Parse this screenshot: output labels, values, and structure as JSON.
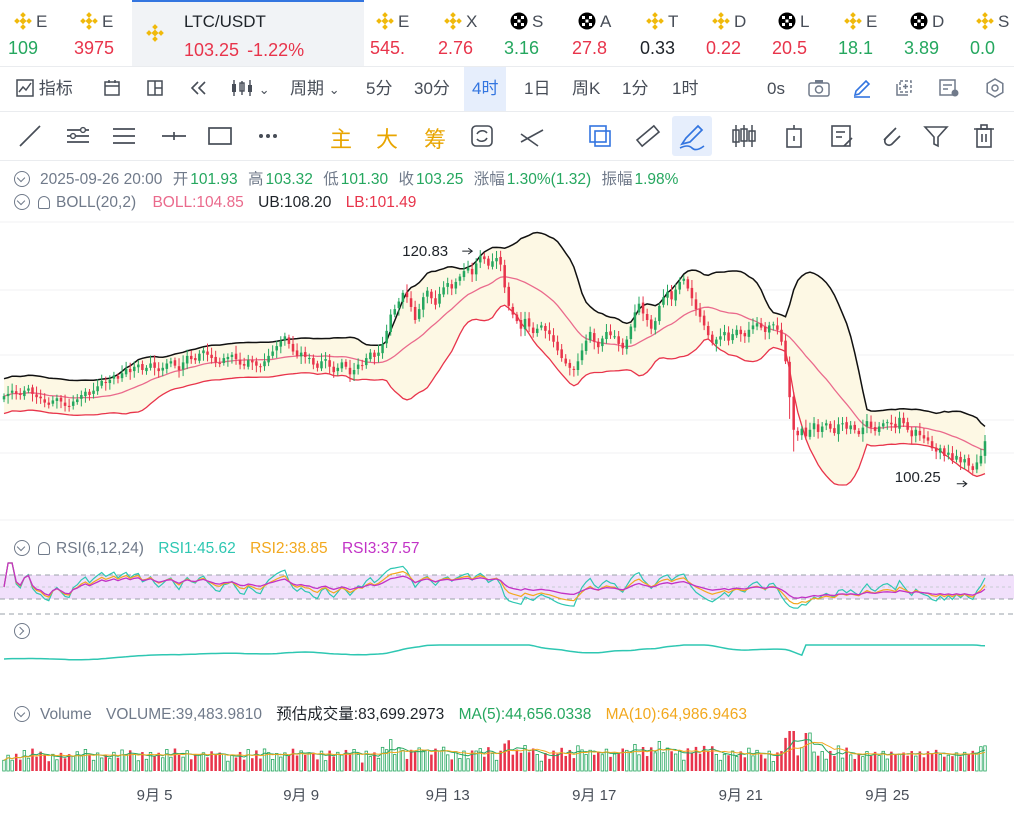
{
  "ticker": [
    {
      "name": "E",
      "price": "109",
      "dir": "pos",
      "icon": "binance-icon"
    },
    {
      "name": "E",
      "price": "3975",
      "dir": "neg",
      "icon": "binance-icon"
    },
    {
      "name": "LTC/USDT",
      "price": "103.25",
      "change": "-1.22%",
      "dir": "neg",
      "icon": "binance-icon",
      "active": true
    },
    {
      "name": "E",
      "price": "545.",
      "dir": "neg",
      "icon": "binance-icon"
    },
    {
      "name": "X",
      "price": "2.76",
      "dir": "neg",
      "icon": "binance-icon"
    },
    {
      "name": "S",
      "price": "3.16",
      "dir": "pos",
      "icon": "okx-icon"
    },
    {
      "name": "A",
      "price": "27.8",
      "dir": "neg",
      "icon": "okx-icon"
    },
    {
      "name": "T",
      "price": "0.33",
      "dir": "neu",
      "icon": "binance-icon"
    },
    {
      "name": "D",
      "price": "0.22",
      "dir": "neg",
      "icon": "binance-icon"
    },
    {
      "name": "L",
      "price": "20.5",
      "dir": "neg",
      "icon": "okx-icon"
    },
    {
      "name": "E",
      "price": "18.1",
      "dir": "pos",
      "icon": "binance-icon"
    },
    {
      "name": "D",
      "price": "3.89",
      "dir": "pos",
      "icon": "okx-icon"
    },
    {
      "name": "S",
      "price": "0.0",
      "dir": "pos",
      "icon": "binance-icon"
    }
  ],
  "toolbar": {
    "indicators": "指标",
    "period": "周期",
    "intervals": [
      "5分",
      "30分",
      "4时",
      "1日",
      "周K",
      "1分",
      "1时"
    ],
    "active_interval": "4时",
    "countdown": "0s"
  },
  "drawing_tools": {
    "main": "主",
    "big": "大",
    "chips": "筹"
  },
  "ohlc": {
    "date": "2025-09-26 20:00",
    "open_label": "开",
    "open": "101.93",
    "high_label": "高",
    "high": "103.32",
    "low_label": "低",
    "low": "101.30",
    "close_label": "收",
    "close": "103.25",
    "change_label": "涨幅",
    "change": "1.30%(1.32)",
    "amp_label": "振幅",
    "amp": "1.98%"
  },
  "boll": {
    "name": "BOLL(20,2)",
    "boll": "BOLL:104.85",
    "ub": "UB:108.20",
    "lb": "LB:101.49"
  },
  "rsi": {
    "name": "RSI(6,12,24)",
    "rsi1": "RSI1:45.62",
    "rsi2": "RSI2:38.85",
    "rsi3": "RSI3:37.57"
  },
  "volume": {
    "name": "Volume",
    "value": "VOLUME:39,483.9810",
    "est": "预估成交量:83,699.2973",
    "ma5": "MA(5):44,656.0338",
    "ma10": "MA(10):64,986.9463"
  },
  "colors": {
    "up": "#25a75f",
    "down": "#e8344b",
    "accent": "#3375e0",
    "band_fill": "#fdf8e4",
    "mid": "#ea6a8c",
    "rsi_band": "#f1e0fb"
  },
  "chart_data": {
    "type": "candlestick",
    "x_ticks": [
      "9月 5",
      "9月 9",
      "9月 13",
      "9月 17",
      "9月 21",
      "9月 25"
    ],
    "annotations": [
      {
        "text": "120.83",
        "kind": "max"
      },
      {
        "text": "100.25",
        "kind": "min"
      }
    ],
    "close": [
      107.4,
      107.6,
      107.9,
      107.6,
      107.5,
      107.9,
      108.1,
      107.6,
      107.3,
      107.2,
      106.8,
      106.6,
      107.0,
      107.2,
      106.9,
      106.5,
      106.4,
      106.9,
      107.1,
      107.5,
      107.8,
      107.5,
      107.9,
      108.3,
      108.8,
      108.6,
      108.9,
      109.3,
      109.0,
      109.5,
      109.9,
      109.6,
      110.1,
      110.3,
      109.8,
      110.0,
      110.4,
      110.0,
      109.7,
      110.0,
      110.4,
      110.6,
      110.2,
      109.8,
      110.5,
      111.1,
      110.8,
      110.7,
      111.3,
      111.6,
      111.2,
      110.9,
      110.5,
      110.4,
      110.9,
      111.0,
      111.2,
      110.8,
      110.3,
      110.2,
      110.7,
      110.5,
      110.2,
      110.1,
      110.6,
      111.1,
      111.5,
      112.0,
      112.5,
      112.9,
      112.2,
      111.5,
      111.1,
      111.4,
      111.0,
      110.9,
      110.3,
      110.0,
      110.6,
      110.8,
      110.1,
      109.6,
      110.0,
      110.5,
      110.1,
      109.4,
      109.8,
      110.3,
      110.2,
      110.9,
      111.4,
      111.0,
      111.4,
      112.2,
      113.4,
      114.9,
      115.4,
      116.1,
      116.9,
      116.5,
      115.6,
      114.4,
      115.4,
      116.5,
      117.1,
      116.4,
      115.8,
      116.8,
      117.4,
      117.8,
      117.3,
      117.9,
      118.4,
      118.9,
      119.2,
      118.6,
      119.6,
      120.3,
      120.0,
      119.4,
      119.8,
      120.1,
      119.5,
      117.4,
      115.7,
      114.9,
      114.3,
      113.6,
      114.5,
      113.8,
      113.2,
      113.6,
      113.9,
      113.4,
      113.1,
      112.4,
      111.6,
      110.9,
      110.4,
      110.0,
      109.8,
      110.6,
      111.6,
      112.5,
      113.3,
      112.4,
      111.9,
      112.7,
      113.3,
      113.0,
      112.9,
      112.2,
      111.8,
      112.6,
      113.8,
      115.1,
      115.9,
      115.0,
      114.4,
      113.6,
      114.3,
      115.7,
      116.5,
      117.0,
      116.3,
      117.2,
      117.9,
      118.2,
      117.3,
      116.4,
      115.4,
      114.7,
      113.9,
      113.0,
      112.3,
      112.6,
      112.9,
      113.3,
      112.5,
      113.1,
      113.5,
      113.1,
      112.9,
      113.5,
      113.9,
      114.1,
      113.7,
      113.3,
      113.9,
      114.0,
      113.5,
      112.4,
      110.6,
      107.3,
      104.3,
      103.8,
      104.4,
      103.7,
      104.3,
      104.9,
      104.1,
      104.6,
      104.9,
      104.4,
      104.0,
      104.8,
      104.9,
      104.4,
      104.7,
      104.3,
      103.9,
      104.5,
      105.1,
      104.5,
      104.2,
      104.6,
      104.9,
      105.0,
      104.8,
      104.5,
      105.4,
      104.9,
      104.3,
      103.7,
      104.3,
      103.8,
      103.5,
      103.3,
      102.6,
      102.3,
      102.6,
      101.9,
      102.2,
      101.5,
      101.9,
      101.3,
      101.6,
      101.0,
      100.6,
      101.3,
      101.9,
      103.25
    ],
    "rsi1_level": 0.4562,
    "rsi2_level": 0.3885,
    "rsi3_level": 0.3757
  }
}
